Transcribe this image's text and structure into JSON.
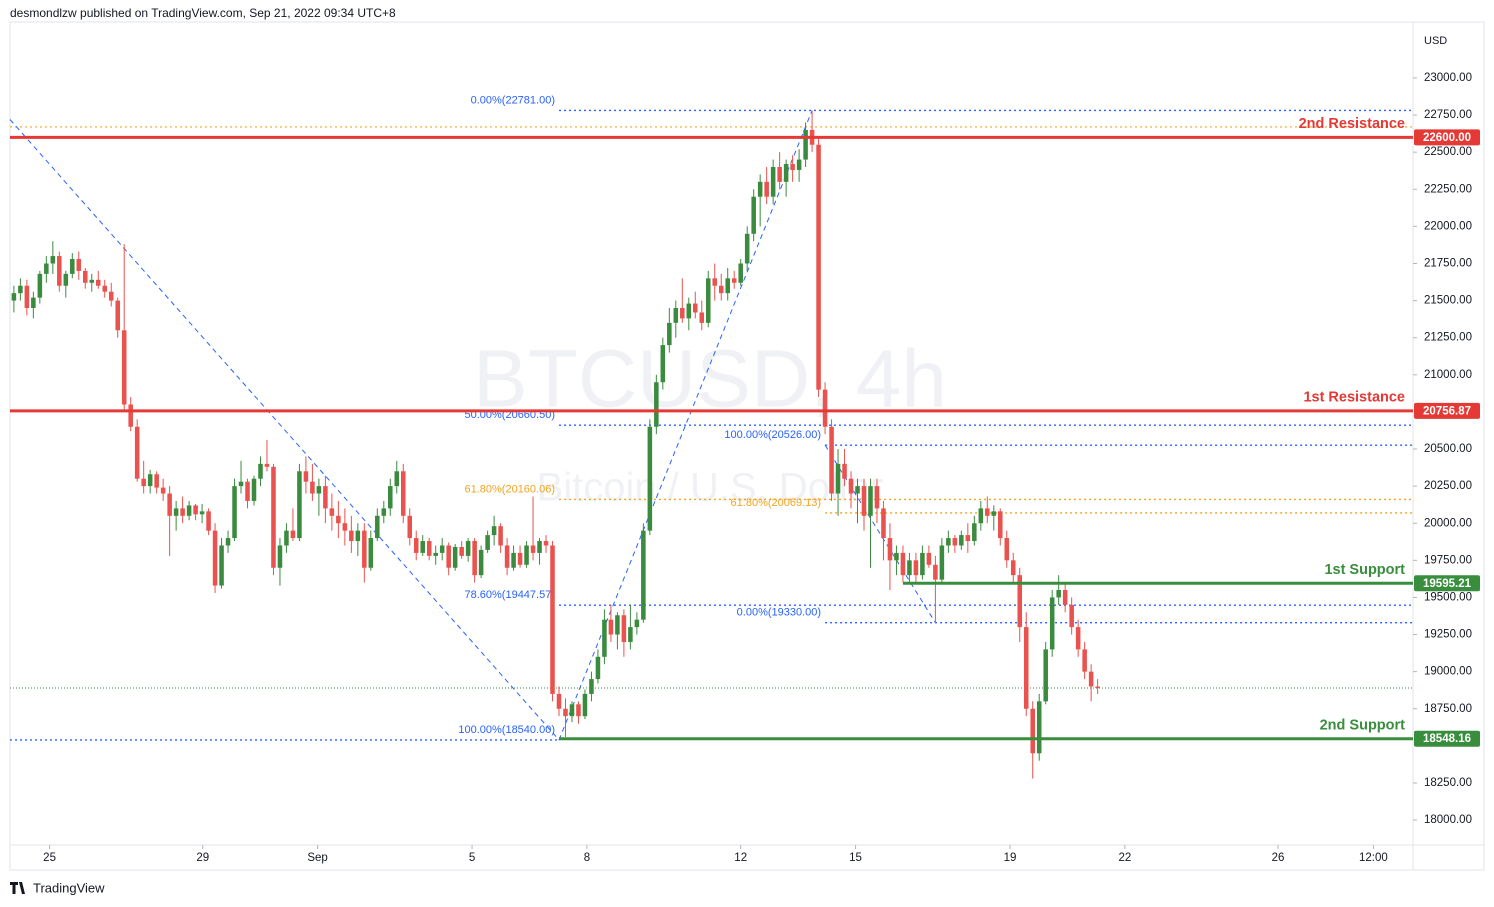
{
  "header": {
    "text": "desmondlzw published on TradingView.com, Sep 21, 2022 09:34 UTC+8"
  },
  "chart_data": {
    "type": "candlestick",
    "symbol": "BTCUSD, 4h",
    "description": "Bitcoin / U.S. Dollar",
    "currency": "USD",
    "up_color": "#3b8b3f",
    "down_color": "#e9524e",
    "ohlc": [
      [
        21500,
        21600,
        21420,
        21550
      ],
      [
        21550,
        21650,
        21500,
        21600
      ],
      [
        21600,
        21640,
        21400,
        21450
      ],
      [
        21450,
        21560,
        21380,
        21520
      ],
      [
        21520,
        21700,
        21480,
        21680
      ],
      [
        21680,
        21800,
        21620,
        21750
      ],
      [
        21750,
        21900,
        21680,
        21800
      ],
      [
        21800,
        21830,
        21560,
        21600
      ],
      [
        21600,
        21700,
        21520,
        21680
      ],
      [
        21680,
        21820,
        21650,
        21780
      ],
      [
        21780,
        21830,
        21640,
        21700
      ],
      [
        21700,
        21720,
        21580,
        21620
      ],
      [
        21620,
        21680,
        21560,
        21640
      ],
      [
        21640,
        21700,
        21580,
        21600
      ],
      [
        21600,
        21640,
        21520,
        21560
      ],
      [
        21560,
        21620,
        21460,
        21500
      ],
      [
        21500,
        21520,
        21250,
        21300
      ],
      [
        21300,
        21880,
        20750,
        20800
      ],
      [
        20800,
        20850,
        20620,
        20650
      ],
      [
        20650,
        20700,
        20280,
        20300
      ],
      [
        20300,
        20420,
        20200,
        20250
      ],
      [
        20250,
        20360,
        20200,
        20330
      ],
      [
        20330,
        20350,
        20200,
        20240
      ],
      [
        20240,
        20300,
        20150,
        20200
      ],
      [
        20200,
        20250,
        19780,
        20050
      ],
      [
        20050,
        20150,
        19950,
        20100
      ],
      [
        20100,
        20180,
        20000,
        20050
      ],
      [
        20050,
        20150,
        20020,
        20120
      ],
      [
        20120,
        20130,
        20020,
        20060
      ],
      [
        20060,
        20130,
        20000,
        20080
      ],
      [
        20080,
        20100,
        19920,
        19950
      ],
      [
        19950,
        20000,
        19530,
        19580
      ],
      [
        19580,
        19900,
        19560,
        19850
      ],
      [
        19850,
        19950,
        19800,
        19900
      ],
      [
        19900,
        20300,
        19880,
        20250
      ],
      [
        20250,
        20420,
        20200,
        20280
      ],
      [
        20280,
        20300,
        20100,
        20150
      ],
      [
        20150,
        20320,
        20120,
        20300
      ],
      [
        20300,
        20450,
        20250,
        20400
      ],
      [
        20400,
        20560,
        20350,
        20380
      ],
      [
        20380,
        20400,
        19650,
        19700
      ],
      [
        19700,
        19900,
        19580,
        19850
      ],
      [
        19850,
        20000,
        19800,
        19950
      ],
      [
        19950,
        20100,
        19880,
        19900
      ],
      [
        19900,
        20400,
        19880,
        20350
      ],
      [
        20350,
        20450,
        20200,
        20280
      ],
      [
        20280,
        20400,
        20150,
        20200
      ],
      [
        20200,
        20300,
        20050,
        20250
      ],
      [
        20250,
        20320,
        20000,
        20100
      ],
      [
        20100,
        20200,
        19950,
        20050
      ],
      [
        20050,
        20150,
        19900,
        20000
      ],
      [
        20000,
        20100,
        19850,
        19950
      ],
      [
        19950,
        20050,
        19800,
        19880
      ],
      [
        19880,
        20000,
        19780,
        19950
      ],
      [
        19950,
        20000,
        19600,
        19700
      ],
      [
        19700,
        19950,
        19680,
        19900
      ],
      [
        19900,
        20100,
        19880,
        20050
      ],
      [
        20050,
        20150,
        20000,
        20100
      ],
      [
        20100,
        20300,
        20050,
        20250
      ],
      [
        20250,
        20420,
        20200,
        20350
      ],
      [
        20350,
        20400,
        20000,
        20050
      ],
      [
        20050,
        20100,
        19850,
        19900
      ],
      [
        19900,
        19950,
        19750,
        19800
      ],
      [
        19800,
        19920,
        19780,
        19880
      ],
      [
        19880,
        19900,
        19750,
        19780
      ],
      [
        19780,
        19850,
        19720,
        19800
      ],
      [
        19800,
        19900,
        19750,
        19850
      ],
      [
        19850,
        19870,
        19650,
        19700
      ],
      [
        19700,
        19860,
        19680,
        19840
      ],
      [
        19840,
        19880,
        19760,
        19780
      ],
      [
        19780,
        19900,
        19740,
        19880
      ],
      [
        19880,
        19900,
        19600,
        19650
      ],
      [
        19650,
        19850,
        19630,
        19820
      ],
      [
        19820,
        19950,
        19800,
        19920
      ],
      [
        19920,
        20050,
        19850,
        19980
      ],
      [
        19980,
        20000,
        19800,
        19850
      ],
      [
        19850,
        19900,
        19650,
        19700
      ],
      [
        19700,
        19850,
        19680,
        19800
      ],
      [
        19800,
        19850,
        19700,
        19720
      ],
      [
        19720,
        19880,
        19700,
        19850
      ],
      [
        19850,
        20180,
        19750,
        19800
      ],
      [
        19800,
        19900,
        19720,
        19880
      ],
      [
        19880,
        19920,
        19800,
        19850
      ],
      [
        19850,
        19880,
        18800,
        18850
      ],
      [
        18850,
        18900,
        18700,
        18750
      ],
      [
        18750,
        18820,
        18560,
        18700
      ],
      [
        18700,
        18800,
        18660,
        18780
      ],
      [
        18780,
        18800,
        18650,
        18700
      ],
      [
        18700,
        18880,
        18680,
        18850
      ],
      [
        18850,
        19000,
        18800,
        18950
      ],
      [
        18950,
        19150,
        18920,
        19100
      ],
      [
        19100,
        19420,
        19050,
        19350
      ],
      [
        19350,
        19450,
        19200,
        19250
      ],
      [
        19250,
        19400,
        19150,
        19380
      ],
      [
        19380,
        19420,
        19100,
        19200
      ],
      [
        19200,
        19450,
        19150,
        19300
      ],
      [
        19300,
        19400,
        19250,
        19350
      ],
      [
        19350,
        20000,
        19330,
        19950
      ],
      [
        19950,
        20700,
        19920,
        20650
      ],
      [
        20650,
        21000,
        20600,
        20950
      ],
      [
        20950,
        21250,
        20900,
        21200
      ],
      [
        21200,
        21450,
        21150,
        21350
      ],
      [
        21350,
        21500,
        21250,
        21450
      ],
      [
        21450,
        21650,
        21350,
        21380
      ],
      [
        21380,
        21520,
        21300,
        21480
      ],
      [
        21480,
        21560,
        21380,
        21420
      ],
      [
        21420,
        21500,
        21300,
        21350
      ],
      [
        21350,
        21700,
        21320,
        21650
      ],
      [
        21650,
        21750,
        21500,
        21600
      ],
      [
        21600,
        21680,
        21500,
        21550
      ],
      [
        21550,
        21720,
        21500,
        21650
      ],
      [
        21650,
        21700,
        21580,
        21620
      ],
      [
        21620,
        21780,
        21600,
        21750
      ],
      [
        21750,
        22000,
        21700,
        21950
      ],
      [
        21950,
        22250,
        21900,
        22200
      ],
      [
        22200,
        22350,
        22000,
        22300
      ],
      [
        22300,
        22400,
        22150,
        22200
      ],
      [
        22200,
        22450,
        22150,
        22400
      ],
      [
        22400,
        22500,
        22250,
        22300
      ],
      [
        22300,
        22450,
        22200,
        22420
      ],
      [
        22420,
        22480,
        22300,
        22380
      ],
      [
        22380,
        22520,
        22300,
        22450
      ],
      [
        22450,
        22700,
        22400,
        22650
      ],
      [
        22650,
        22781,
        22500,
        22550
      ],
      [
        22550,
        22600,
        20850,
        20900
      ],
      [
        20900,
        20950,
        20600,
        20650
      ],
      [
        20650,
        20700,
        20150,
        20200
      ],
      [
        20200,
        20500,
        20050,
        20400
      ],
      [
        20400,
        20500,
        20250,
        20300
      ],
      [
        20300,
        20350,
        20100,
        20200
      ],
      [
        20200,
        20300,
        20000,
        20250
      ],
      [
        20250,
        20300,
        19950,
        20050
      ],
      [
        20050,
        20300,
        19700,
        20250
      ],
      [
        20250,
        20300,
        20000,
        20100
      ],
      [
        20100,
        20150,
        19750,
        19900
      ],
      [
        19900,
        20000,
        19550,
        19750
      ],
      [
        19750,
        19850,
        19650,
        19800
      ],
      [
        19800,
        19850,
        19600,
        19650
      ],
      [
        19650,
        19800,
        19600,
        19750
      ],
      [
        19750,
        19800,
        19600,
        19650
      ],
      [
        19650,
        19850,
        19620,
        19800
      ],
      [
        19800,
        19850,
        19700,
        19720
      ],
      [
        19720,
        19780,
        19330,
        19620
      ],
      [
        19620,
        19900,
        19600,
        19850
      ],
      [
        19850,
        19950,
        19800,
        19900
      ],
      [
        19900,
        19920,
        19800,
        19850
      ],
      [
        19850,
        19950,
        19820,
        19920
      ],
      [
        19920,
        20000,
        19800,
        19880
      ],
      [
        19880,
        20050,
        19850,
        20000
      ],
      [
        20000,
        20150,
        19950,
        20100
      ],
      [
        20100,
        20180,
        20000,
        20050
      ],
      [
        20050,
        20120,
        19950,
        20080
      ],
      [
        20080,
        20100,
        19850,
        19900
      ],
      [
        19900,
        19950,
        19700,
        19750
      ],
      [
        19750,
        19800,
        19600,
        19650
      ],
      [
        19650,
        19700,
        19200,
        19300
      ],
      [
        19300,
        19400,
        18700,
        18750
      ],
      [
        18750,
        18800,
        18280,
        18450
      ],
      [
        18450,
        18850,
        18400,
        18800
      ],
      [
        18800,
        19200,
        18780,
        19150
      ],
      [
        19150,
        19550,
        19100,
        19500
      ],
      [
        19500,
        19650,
        19450,
        19550
      ],
      [
        19550,
        19600,
        19400,
        19450
      ],
      [
        19450,
        19500,
        19250,
        19300
      ],
      [
        19300,
        19350,
        19100,
        19150
      ],
      [
        19150,
        19200,
        18950,
        19000
      ],
      [
        19000,
        19050,
        18800,
        18900
      ],
      [
        18900,
        18950,
        18850,
        18890
      ]
    ],
    "xlim": [
      -0.6,
      215.6
    ],
    "xticks": [
      {
        "value": 5.5,
        "label": "25"
      },
      {
        "value": 29.1,
        "label": "29"
      },
      {
        "value": 46.8,
        "label": "Sep"
      },
      {
        "value": 70.6,
        "label": "5"
      },
      {
        "value": 88.3,
        "label": "8"
      },
      {
        "value": 112,
        "label": "12"
      },
      {
        "value": 129.7,
        "label": "15"
      },
      {
        "value": 153.5,
        "label": "19"
      },
      {
        "value": 171.2,
        "label": "22"
      },
      {
        "value": 194.8,
        "label": "26"
      },
      {
        "value": 209.5,
        "label": "12:00"
      }
    ],
    "ylim": [
      17832,
      23377
    ],
    "yticks": [
      {
        "value": 18000,
        "label": "18000.00"
      },
      {
        "value": 18250,
        "label": "18250.00"
      },
      {
        "value": 18750,
        "label": "18750.00"
      },
      {
        "value": 19000,
        "label": "19000.00"
      },
      {
        "value": 19250,
        "label": "19250.00"
      },
      {
        "value": 19500,
        "label": "19500.00"
      },
      {
        "value": 19750,
        "label": "19750.00"
      },
      {
        "value": 20000,
        "label": "20000.00"
      },
      {
        "value": 20250,
        "label": "20250.00"
      },
      {
        "value": 20500,
        "label": "20500.00"
      },
      {
        "value": 21000,
        "label": "21000.00"
      },
      {
        "value": 21250,
        "label": "21250.00"
      },
      {
        "value": 21500,
        "label": "21500.00"
      },
      {
        "value": 21750,
        "label": "21750.00"
      },
      {
        "value": 22000,
        "label": "22000.00"
      },
      {
        "value": 22250,
        "label": "22250.00"
      },
      {
        "value": 22500,
        "label": "22500.00"
      },
      {
        "value": 22750,
        "label": "22750.00"
      },
      {
        "value": 23000,
        "label": "23000.00"
      }
    ],
    "levels": [
      {
        "name": "2nd Resistance",
        "value": 22600,
        "value_label": "22600.00",
        "color": "#e53935"
      },
      {
        "name": "1st Resistance",
        "value": 20756.87,
        "value_label": "20756.87",
        "color": "#e53935"
      },
      {
        "name": "1st Support",
        "value": 19595.21,
        "value_label": "19595.21",
        "color": "#388e3c",
        "from": 137
      },
      {
        "name": "2nd Support",
        "value": 18548.16,
        "value_label": "18548.16",
        "color": "#388e3c",
        "from": 84
      }
    ],
    "fib_lines": [
      {
        "label": "0.00%(22781.00)",
        "value": 22781,
        "color": "#2962ff",
        "from": 84
      },
      {
        "label": "50.00%(20660.50)",
        "value": 20660.5,
        "color": "#2962ff",
        "from": 84
      },
      {
        "label": "61.80%(20160.06)",
        "value": 20160.06,
        "color": "#f4a320",
        "from": 84
      },
      {
        "label": "78.60%(19447.57)",
        "value": 19447.57,
        "color": "#2962ff",
        "from": 84
      },
      {
        "label": "100.00%(18540.00)",
        "value": 18540,
        "color": "#2962ff",
        "to": 84
      },
      {
        "label": "100.00%(20526.00)",
        "value": 20526,
        "color": "#2962ff",
        "from": 125
      },
      {
        "label": "61.80%(20069.13)",
        "value": 20069.13,
        "color": "#f4a320",
        "from": 125
      },
      {
        "label": "0.00%(19330.00)",
        "value": 19330,
        "color": "#2962ff",
        "from": 125
      }
    ],
    "trend_lines": [
      {
        "from": [
          -0.6,
          22720
        ],
        "to": [
          84,
          18540
        ]
      },
      {
        "from": [
          84,
          18540
        ],
        "to": [
          123,
          22781
        ]
      },
      {
        "from": [
          125,
          20526
        ],
        "to": [
          142,
          19330
        ]
      }
    ],
    "guide_lines": [
      {
        "value": 22670,
        "color": "#f4a320"
      }
    ],
    "last_price_line": true
  },
  "footer": {
    "brand": "TradingView"
  }
}
